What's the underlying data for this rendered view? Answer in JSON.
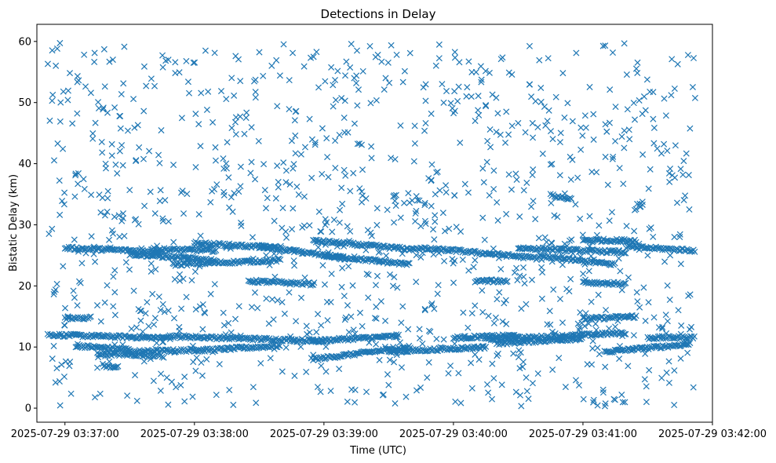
{
  "chart_data": {
    "type": "scatter",
    "title": "Detections in Delay",
    "xlabel": "Time (UTC)",
    "ylabel": "Bistatic Delay (km)",
    "marker": "x",
    "color": "#1f77b4",
    "grid": false,
    "legend": "none",
    "x_range": [
      "2025-07-29 03:36:47",
      "2025-07-29 03:42:00"
    ],
    "y_range": [
      -2.3,
      62.8
    ],
    "x_ticks": [
      "2025-07-29 03:37:00",
      "2025-07-29 03:38:00",
      "2025-07-29 03:39:00",
      "2025-07-29 03:40:00",
      "2025-07-29 03:41:00",
      "2025-07-29 03:42:00"
    ],
    "y_ticks": [
      "0",
      "10",
      "20",
      "30",
      "40",
      "50",
      "60"
    ],
    "track_segments": [
      {
        "t_start": "2025-07-29 03:36:52",
        "t_end": "2025-07-29 03:37:45",
        "delay_start": 12.0,
        "delay_end": 11.5
      },
      {
        "t_start": "2025-07-29 03:37:05",
        "t_end": "2025-07-29 03:37:30",
        "delay_start": 10.2,
        "delay_end": 9.6
      },
      {
        "t_start": "2025-07-29 03:37:15",
        "t_end": "2025-07-29 03:37:45",
        "delay_start": 8.9,
        "delay_end": 8.6
      },
      {
        "t_start": "2025-07-29 03:37:18",
        "t_end": "2025-07-29 03:37:25",
        "delay_start": 6.8,
        "delay_end": 6.8
      },
      {
        "t_start": "2025-07-29 03:37:00",
        "t_end": "2025-07-29 03:37:12",
        "delay_start": 14.6,
        "delay_end": 14.8
      },
      {
        "t_start": "2025-07-29 03:37:28",
        "t_end": "2025-07-29 03:38:00",
        "delay_start": 9.2,
        "delay_end": 9.5
      },
      {
        "t_start": "2025-07-29 03:37:45",
        "t_end": "2025-07-29 03:39:00",
        "delay_start": 11.8,
        "delay_end": 11.0
      },
      {
        "t_start": "2025-07-29 03:38:00",
        "t_end": "2025-07-29 03:38:40",
        "delay_start": 9.4,
        "delay_end": 10.2
      },
      {
        "t_start": "2025-07-29 03:38:55",
        "t_end": "2025-07-29 03:39:35",
        "delay_start": 11.0,
        "delay_end": 11.8
      },
      {
        "t_start": "2025-07-29 03:38:55",
        "t_end": "2025-07-29 03:39:40",
        "delay_start": 8.0,
        "delay_end": 10.0
      },
      {
        "t_start": "2025-07-29 03:39:30",
        "t_end": "2025-07-29 03:40:15",
        "delay_start": 9.2,
        "delay_end": 10.0
      },
      {
        "t_start": "2025-07-29 03:40:00",
        "t_end": "2025-07-29 03:40:30",
        "delay_start": 11.5,
        "delay_end": 11.9
      },
      {
        "t_start": "2025-07-29 03:40:15",
        "t_end": "2025-07-29 03:41:20",
        "delay_start": 11.2,
        "delay_end": 12.3
      },
      {
        "t_start": "2025-07-29 03:40:20",
        "t_end": "2025-07-29 03:41:00",
        "delay_start": 10.6,
        "delay_end": 11.4
      },
      {
        "t_start": "2025-07-29 03:41:00",
        "t_end": "2025-07-29 03:41:25",
        "delay_start": 14.6,
        "delay_end": 15.0
      },
      {
        "t_start": "2025-07-29 03:41:10",
        "t_end": "2025-07-29 03:41:50",
        "delay_start": 9.2,
        "delay_end": 10.5
      },
      {
        "t_start": "2025-07-29 03:41:30",
        "t_end": "2025-07-29 03:41:52",
        "delay_start": 11.5,
        "delay_end": 11.6
      },
      {
        "t_start": "2025-07-29 03:37:00",
        "t_end": "2025-07-29 03:37:45",
        "delay_start": 26.2,
        "delay_end": 25.6
      },
      {
        "t_start": "2025-07-29 03:37:30",
        "t_end": "2025-07-29 03:38:10",
        "delay_start": 25.2,
        "delay_end": 24.2
      },
      {
        "t_start": "2025-07-29 03:37:40",
        "t_end": "2025-07-29 03:38:10",
        "delay_start": 26.0,
        "delay_end": 25.8
      },
      {
        "t_start": "2025-07-29 03:38:00",
        "t_end": "2025-07-29 03:38:40",
        "delay_start": 27.0,
        "delay_end": 26.2
      },
      {
        "t_start": "2025-07-29 03:37:50",
        "t_end": "2025-07-29 03:38:40",
        "delay_start": 23.5,
        "delay_end": 24.2
      },
      {
        "t_start": "2025-07-29 03:38:25",
        "t_end": "2025-07-29 03:38:55",
        "delay_start": 20.8,
        "delay_end": 20.3
      },
      {
        "t_start": "2025-07-29 03:38:30",
        "t_end": "2025-07-29 03:39:10",
        "delay_start": 26.5,
        "delay_end": 24.5
      },
      {
        "t_start": "2025-07-29 03:38:55",
        "t_end": "2025-07-29 03:39:40",
        "delay_start": 27.4,
        "delay_end": 26.0
      },
      {
        "t_start": "2025-07-29 03:39:00",
        "t_end": "2025-07-29 03:39:40",
        "delay_start": 25.0,
        "delay_end": 23.5
      },
      {
        "t_start": "2025-07-29 03:39:40",
        "t_end": "2025-07-29 03:40:00",
        "delay_start": 26.2,
        "delay_end": 25.8
      },
      {
        "t_start": "2025-07-29 03:40:00",
        "t_end": "2025-07-29 03:40:40",
        "delay_start": 25.8,
        "delay_end": 24.5
      },
      {
        "t_start": "2025-07-29 03:40:10",
        "t_end": "2025-07-29 03:40:25",
        "delay_start": 20.8,
        "delay_end": 20.8
      },
      {
        "t_start": "2025-07-29 03:40:30",
        "t_end": "2025-07-29 03:41:20",
        "delay_start": 26.2,
        "delay_end": 25.5
      },
      {
        "t_start": "2025-07-29 03:40:40",
        "t_end": "2025-07-29 03:41:15",
        "delay_start": 24.8,
        "delay_end": 23.5
      },
      {
        "t_start": "2025-07-29 03:41:00",
        "t_end": "2025-07-29 03:41:25",
        "delay_start": 27.5,
        "delay_end": 27.4
      },
      {
        "t_start": "2025-07-29 03:41:00",
        "t_end": "2025-07-29 03:41:20",
        "delay_start": 20.6,
        "delay_end": 20.3
      },
      {
        "t_start": "2025-07-29 03:41:20",
        "t_end": "2025-07-29 03:41:52",
        "delay_start": 26.4,
        "delay_end": 25.8
      },
      {
        "t_start": "2025-07-29 03:40:45",
        "t_end": "2025-07-29 03:40:55",
        "delay_start": 34.8,
        "delay_end": 34.2
      }
    ]
  }
}
